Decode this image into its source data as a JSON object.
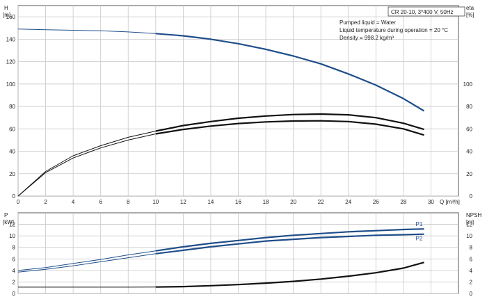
{
  "chart_data": [
    {
      "type": "line",
      "panel": "top",
      "title": "CR 20-10, 3*400 V, 50Hz",
      "info_lines": [
        "Pumped liquid = Water",
        "Liquid temperature during operation = 20 °C",
        "Density = 998.2 kg/m³"
      ],
      "xlabel": "Q [m³/h]",
      "ylabel_left": "H",
      "ylabel_left_unit": "[m]",
      "ylabel_right": "eta",
      "ylabel_right_unit": "[%]",
      "xlim": [
        0,
        32
      ],
      "ylim_left": [
        0,
        170
      ],
      "ylim_right": [
        0,
        170
      ],
      "x_ticks": [
        0,
        2,
        4,
        6,
        8,
        10,
        12,
        14,
        16,
        18,
        20,
        22,
        24,
        26,
        28,
        30
      ],
      "y_ticks_left": [
        0,
        20,
        40,
        60,
        80,
        100,
        120,
        140,
        160
      ],
      "y_ticks_right": [
        0,
        20,
        40,
        60,
        80,
        100
      ],
      "grid": true,
      "series": [
        {
          "name": "",
          "color": "#1f4e8a",
          "axis": "left",
          "x": [
            0,
            2,
            4,
            6,
            8,
            10,
            12,
            14,
            16,
            18,
            20,
            22,
            24,
            26,
            28,
            29.5
          ],
          "y": [
            149,
            148.5,
            148,
            147.5,
            146.5,
            145,
            143,
            140,
            136,
            131,
            125,
            118,
            109,
            99,
            87,
            76
          ]
        },
        {
          "name": "",
          "color": "#111111",
          "axis": "right",
          "x": [
            0,
            2,
            4,
            6,
            8,
            10,
            12,
            14,
            16,
            18,
            20,
            22,
            24,
            26,
            28,
            29.5
          ],
          "y": [
            0,
            21,
            34,
            43,
            50,
            55.5,
            59.5,
            62.5,
            64.8,
            66.2,
            67,
            67.2,
            66.5,
            64.2,
            60,
            54.5
          ]
        },
        {
          "name": "",
          "color": "#111111",
          "axis": "right",
          "x": [
            0,
            2,
            4,
            6,
            8,
            10,
            12,
            14,
            16,
            18,
            20,
            22,
            24,
            26,
            28,
            29.5
          ],
          "y": [
            0,
            22,
            36,
            45,
            52.5,
            58,
            63,
            66.5,
            69.5,
            71.5,
            72.8,
            73.2,
            72.5,
            70,
            65,
            59.5
          ]
        }
      ]
    },
    {
      "type": "line",
      "panel": "bottom",
      "ylabel_left": "P",
      "ylabel_left_unit": "[kW]",
      "ylabel_right": "NPSH",
      "ylabel_right_unit": "[m]",
      "xlim": [
        0,
        32
      ],
      "ylim_left": [
        0,
        14
      ],
      "ylim_right": [
        0,
        14
      ],
      "y_ticks_left": [
        0,
        2,
        4,
        6,
        8,
        10,
        12
      ],
      "y_ticks_right": [
        0,
        2,
        4,
        6,
        8,
        10,
        12
      ],
      "grid": true,
      "series": [
        {
          "name": "P1",
          "color": "#1f4e8a",
          "axis": "left",
          "x": [
            0,
            2,
            4,
            6,
            8,
            10,
            12,
            14,
            16,
            18,
            20,
            22,
            24,
            26,
            28,
            29.5
          ],
          "y": [
            4.0,
            4.5,
            5.2,
            5.9,
            6.7,
            7.4,
            8.1,
            8.7,
            9.2,
            9.7,
            10.1,
            10.4,
            10.7,
            10.9,
            11.1,
            11.2
          ]
        },
        {
          "name": "P2",
          "color": "#1f4e8a",
          "axis": "left",
          "x": [
            0,
            2,
            4,
            6,
            8,
            10,
            12,
            14,
            16,
            18,
            20,
            22,
            24,
            26,
            28,
            29.5
          ],
          "y": [
            3.7,
            4.2,
            4.8,
            5.5,
            6.2,
            6.9,
            7.5,
            8.1,
            8.6,
            9.1,
            9.4,
            9.7,
            9.9,
            10.1,
            10.2,
            10.3
          ]
        },
        {
          "name": "",
          "color": "#111111",
          "axis": "right",
          "x": [
            0,
            2,
            4,
            6,
            8,
            10,
            12,
            14,
            16,
            18,
            20,
            22,
            24,
            26,
            28,
            29.5
          ],
          "y": [
            1.1,
            1.1,
            1.1,
            1.1,
            1.1,
            1.12,
            1.2,
            1.35,
            1.55,
            1.8,
            2.1,
            2.5,
            3.0,
            3.6,
            4.4,
            5.4
          ]
        }
      ]
    }
  ]
}
